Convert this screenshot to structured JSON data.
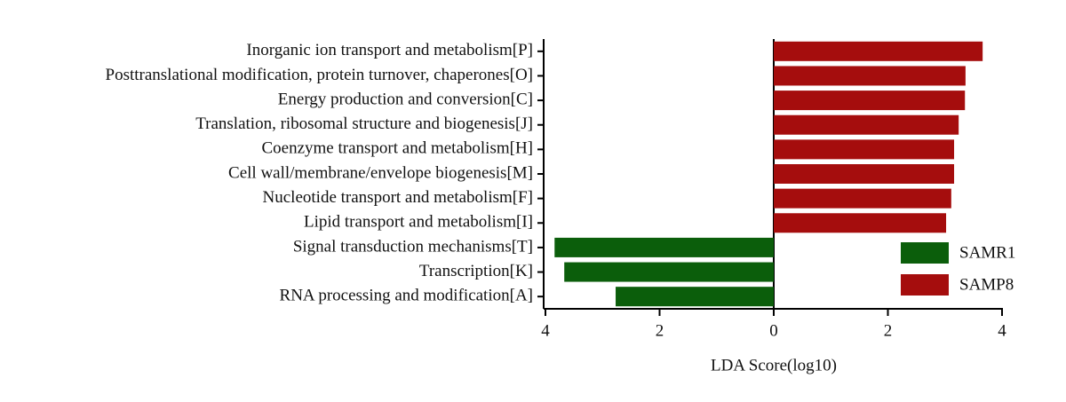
{
  "chart_data": {
    "type": "barh",
    "x_label": "LDA Score(log10)",
    "categories": [
      "Inorganic ion transport and metabolism[P]",
      "Posttranslational modification, protein turnover, chaperones[O]",
      "Energy production and conversion[C]",
      "Translation, ribosomal structure and biogenesis[J]",
      "Coenzyme transport and metabolism[H]",
      "Cell wall/membrane/envelope biogenesis[M]",
      "Nucleotide transport and metabolism[F]",
      "Lipid transport and metabolism[I]",
      "Signal transduction mechanisms[T]",
      "Transcription[K]",
      "RNA processing and modification[A]"
    ],
    "series": [
      {
        "name": "SAMR1",
        "color": "#0b5e0b",
        "values": [
          null,
          null,
          null,
          null,
          null,
          null,
          null,
          null,
          -3.84,
          -3.67,
          -2.77
        ]
      },
      {
        "name": "SAMP8",
        "color": "#a50d0d",
        "values": [
          3.66,
          3.36,
          3.35,
          3.24,
          3.16,
          3.16,
          3.11,
          3.02,
          null,
          null,
          null
        ]
      }
    ],
    "xlim": [
      -4,
      4
    ],
    "xticks": [
      {
        "value": -4,
        "label": "4"
      },
      {
        "value": -2,
        "label": "2"
      },
      0,
      2,
      4
    ],
    "legend": "lower right"
  }
}
